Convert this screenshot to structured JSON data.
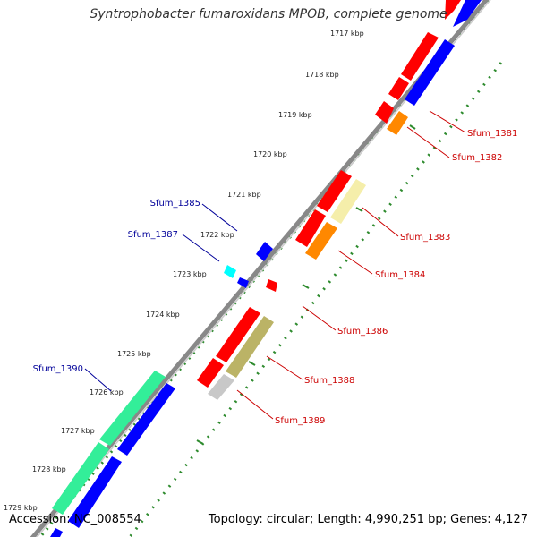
{
  "title": "Syntrophobacter fumaroxidans MPOB, complete genome",
  "footer": {
    "accession_label": "Accession:",
    "accession": "NC_008554",
    "summary": "Topology: circular; Length: 4,990,251 bp; Genes: 4,127"
  },
  "colors": {
    "backbone": "#888888",
    "tick_dot": "#2e8b2e",
    "label_red": "#cc0000",
    "label_blue": "#000099",
    "red": "#ff0000",
    "blue": "#0000ff",
    "orange": "#ff8800",
    "cyan": "#00ffff",
    "spring_green": "#33ee99",
    "pale_yellow": "#f5eeaa",
    "olive": "#bbb366",
    "light_gray": "#c8c8c8"
  },
  "ticks": [
    "1717 kbp",
    "1718 kbp",
    "1719 kbp",
    "1720 kbp",
    "1721 kbp",
    "1722 kbp",
    "1723 kbp",
    "1724 kbp",
    "1725 kbp",
    "1726 kbp",
    "1727 kbp",
    "1728 kbp",
    "1729 kbp"
  ],
  "gene_labels": [
    {
      "id": "Sfum_1381",
      "text": "Sfum_1381",
      "color": "red"
    },
    {
      "id": "Sfum_1382",
      "text": "Sfum_1382",
      "color": "red"
    },
    {
      "id": "Sfum_1383",
      "text": "Sfum_1383",
      "color": "red"
    },
    {
      "id": "Sfum_1384",
      "text": "Sfum_1384",
      "color": "red"
    },
    {
      "id": "Sfum_1385",
      "text": "Sfum_1385",
      "color": "blue"
    },
    {
      "id": "Sfum_1386",
      "text": "Sfum_1386",
      "color": "red"
    },
    {
      "id": "Sfum_1387",
      "text": "Sfum_1387",
      "color": "blue"
    },
    {
      "id": "Sfum_1388",
      "text": "Sfum_1388",
      "color": "red"
    },
    {
      "id": "Sfum_1389",
      "text": "Sfum_1389",
      "color": "red"
    },
    {
      "id": "Sfum_1390",
      "text": "Sfum_1390",
      "color": "blue"
    }
  ]
}
